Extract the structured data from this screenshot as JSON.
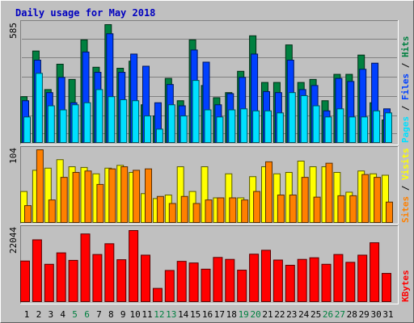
{
  "chart_data": {
    "type": "bar",
    "title": "Daily usage for May 2018",
    "categories": [
      "1",
      "2",
      "3",
      "4",
      "5",
      "6",
      "7",
      "8",
      "9",
      "10",
      "11",
      "12",
      "13",
      "14",
      "15",
      "16",
      "17",
      "18",
      "19",
      "20",
      "21",
      "22",
      "23",
      "24",
      "25",
      "26",
      "27",
      "28",
      "29",
      "30",
      "31"
    ],
    "weekend_days": [
      "5",
      "6",
      "12",
      "13",
      "19",
      "20",
      "26",
      "27"
    ],
    "colors": {
      "background": "#c0c0c0",
      "title": "#0000c0",
      "hits": "#008040",
      "files": "#0040ff",
      "pages": "#00e0ff",
      "visits": "#ffff00",
      "sites": "#ff8000",
      "kbytes": "#ff0000",
      "weekday_label": "#000000",
      "weekend_label": "#008040"
    },
    "panels": [
      {
        "id": "hits-files-pages",
        "max_label": "585",
        "ylim": [
          0,
          585
        ],
        "legend": [
          {
            "text": "Pages",
            "color": "#00e0ff"
          },
          {
            "text": " / ",
            "color": "#000000"
          },
          {
            "text": "Files",
            "color": "#0040ff"
          },
          {
            "text": " / ",
            "color": "#000000"
          },
          {
            "text": "Hits",
            "color": "#008040"
          }
        ],
        "series": [
          {
            "name": "Hits",
            "color": "#008040",
            "values": [
              230,
              455,
              265,
              390,
              315,
              510,
              375,
              585,
              370,
              405,
              190,
              135,
              320,
              210,
              510,
              285,
              225,
              250,
              355,
              530,
              300,
              300,
              485,
              300,
              315,
              210,
              340,
              340,
              435,
              200,
              115
            ]
          },
          {
            "name": "Files",
            "color": "#0040ff",
            "values": [
              210,
              410,
              250,
              325,
              200,
              450,
              350,
              540,
              350,
              440,
              380,
              200,
              290,
              185,
              460,
              400,
              190,
              245,
              325,
              440,
              255,
              250,
              410,
              265,
              285,
              160,
              320,
              305,
              365,
              395,
              170
            ]
          },
          {
            "name": "Pages",
            "color": "#00e0ff",
            "values": [
              130,
              345,
              185,
              165,
              190,
              200,
              265,
              230,
              215,
              210,
              135,
              70,
              190,
              135,
              310,
              165,
              130,
              165,
              170,
              160,
              160,
              150,
              250,
              235,
              185,
              130,
              170,
              130,
              130,
              160,
              150
            ]
          }
        ]
      },
      {
        "id": "visits-sites",
        "max_label": "104",
        "ylim": [
          0,
          104
        ],
        "legend": [
          {
            "text": "Sites",
            "color": "#ff8000"
          },
          {
            "text": " / ",
            "color": "#000000"
          },
          {
            "text": "Visits",
            "color": "#ffff00"
          }
        ],
        "series": [
          {
            "name": "Visits",
            "color": "#ffff00",
            "values": [
              45,
              75,
              78,
              90,
              80,
              79,
              70,
              78,
              82,
              72,
              42,
              35,
              40,
              80,
              45,
              80,
              36,
              70,
              36,
              66,
              80,
              70,
              72,
              88,
              80,
              80,
              72,
              44,
              74,
              70,
              68
            ]
          },
          {
            "name": "Sites",
            "color": "#ff8000",
            "values": [
              25,
              104,
              33,
              65,
              72,
              74,
              55,
              77,
              80,
              75,
              77,
              38,
              28,
              38,
              28,
              33,
              36,
              36,
              33,
              45,
              87,
              40,
              40,
              65,
              37,
              85,
              39,
              39,
              69,
              65,
              30
            ]
          }
        ]
      },
      {
        "id": "kbytes",
        "max_label": "22044",
        "ylim": [
          0,
          22044
        ],
        "legend": [
          {
            "text": "KBytes",
            "color": "#ff0000"
          }
        ],
        "series": [
          {
            "name": "KBytes",
            "color": "#ff0000",
            "values": [
              12700,
              19200,
              11700,
              15200,
              12900,
              21000,
              14700,
              18000,
              13100,
              22044,
              14500,
              4300,
              9800,
              12600,
              12100,
              10200,
              13800,
              13200,
              9900,
              14800,
              16000,
              13000,
              11400,
              13200,
              13700,
              11700,
              14700,
              12300,
              14500,
              18300,
              8900
            ]
          }
        ]
      }
    ]
  }
}
